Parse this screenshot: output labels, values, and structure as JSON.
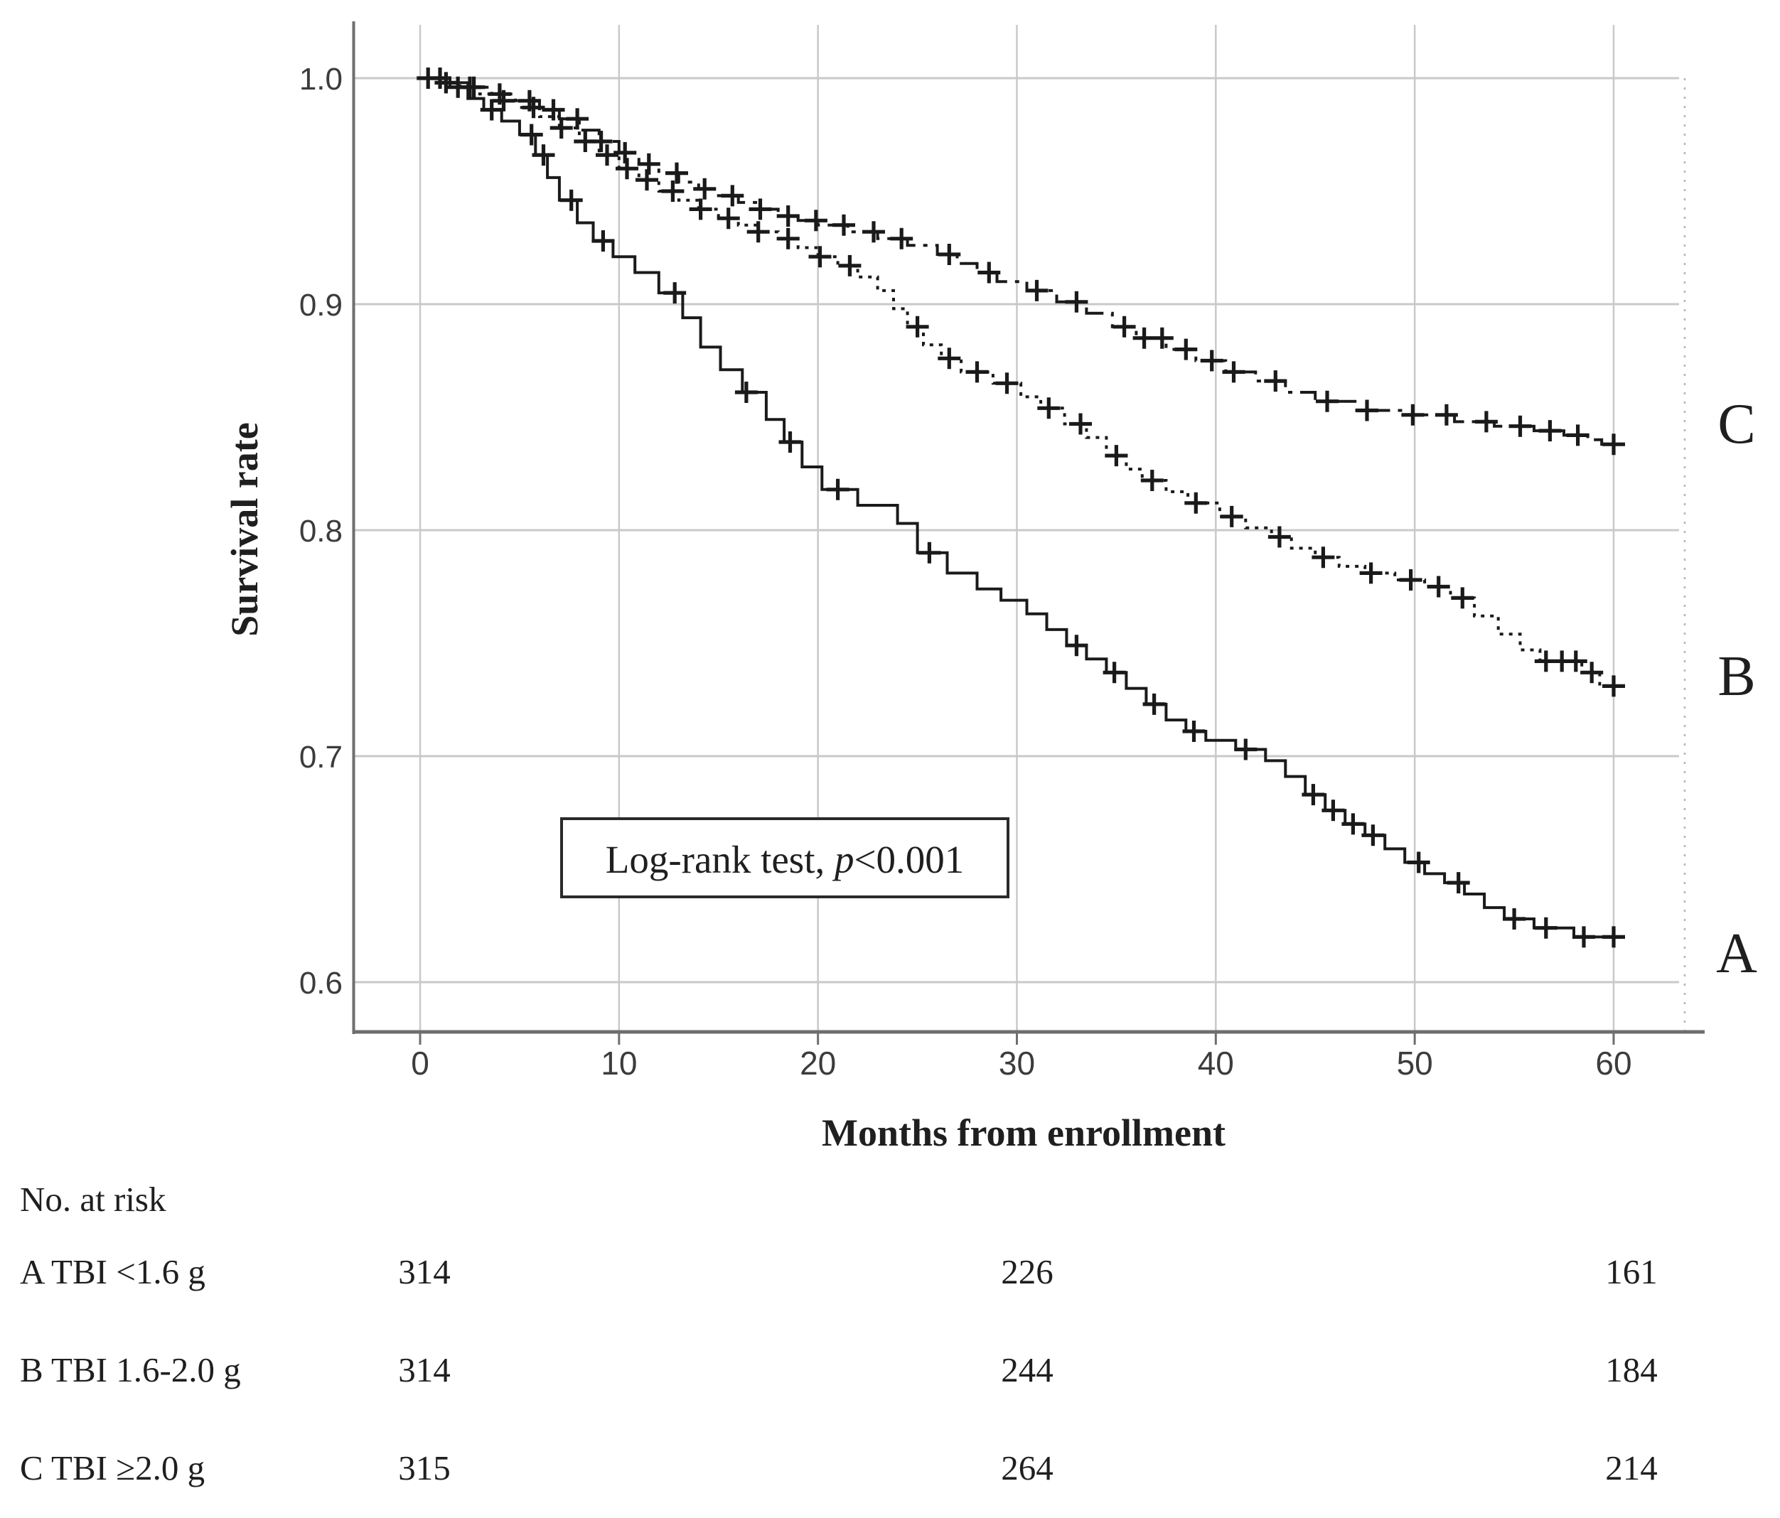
{
  "colors": {
    "background": "#ffffff",
    "curve": "#1a1a1a",
    "grid": "#c9c9c9",
    "axis": "#6e6e6e",
    "frame_dotted": "#b5b5b5",
    "text": "#1f1f1f"
  },
  "chart_data": {
    "type": "line",
    "subtype": "kaplan-meier-step",
    "title": "",
    "xlabel": "Months from enrollment",
    "ylabel": "Survival rate",
    "xlim": [
      0,
      60
    ],
    "ylim": [
      0.58,
      1.02
    ],
    "x_ticks": [
      0,
      10,
      20,
      30,
      40,
      50,
      60
    ],
    "x_tick_labels": [
      "0",
      "10",
      "20",
      "30",
      "40",
      "50",
      "60"
    ],
    "y_ticks": [
      1.0,
      0.9,
      0.8,
      0.7,
      0.6
    ],
    "y_tick_labels": [
      "1.0",
      "0.9",
      "0.8",
      "0.7",
      "0.6"
    ],
    "grid": true,
    "annotation": {
      "prefix": "Log-rank test, ",
      "p": "p",
      "suffix": "<0.001"
    },
    "series": [
      {
        "name": "A",
        "label": "A",
        "pattern": "solid",
        "steps": [
          [
            0,
            1.0
          ],
          [
            1.5,
            0.996
          ],
          [
            2.4,
            0.991
          ],
          [
            3.2,
            0.986
          ],
          [
            4.1,
            0.981
          ],
          [
            5.0,
            0.975
          ],
          [
            5.8,
            0.966
          ],
          [
            6.4,
            0.956
          ],
          [
            7.0,
            0.946
          ],
          [
            7.9,
            0.936
          ],
          [
            8.7,
            0.928
          ],
          [
            9.7,
            0.921
          ],
          [
            10.8,
            0.914
          ],
          [
            12.0,
            0.905
          ],
          [
            13.2,
            0.894
          ],
          [
            14.1,
            0.881
          ],
          [
            15.1,
            0.871
          ],
          [
            16.2,
            0.861
          ],
          [
            17.4,
            0.849
          ],
          [
            18.3,
            0.839
          ],
          [
            19.2,
            0.828
          ],
          [
            20.2,
            0.818
          ],
          [
            22.0,
            0.811
          ],
          [
            24.0,
            0.803
          ],
          [
            25.0,
            0.79
          ],
          [
            26.5,
            0.781
          ],
          [
            28.0,
            0.774
          ],
          [
            29.2,
            0.769
          ],
          [
            30.5,
            0.763
          ],
          [
            31.5,
            0.756
          ],
          [
            32.5,
            0.749
          ],
          [
            33.5,
            0.743
          ],
          [
            34.5,
            0.737
          ],
          [
            35.5,
            0.73
          ],
          [
            36.5,
            0.723
          ],
          [
            37.5,
            0.716
          ],
          [
            38.5,
            0.711
          ],
          [
            39.5,
            0.707
          ],
          [
            41.0,
            0.703
          ],
          [
            42.5,
            0.698
          ],
          [
            43.5,
            0.691
          ],
          [
            44.5,
            0.683
          ],
          [
            45.5,
            0.676
          ],
          [
            46.5,
            0.67
          ],
          [
            47.5,
            0.665
          ],
          [
            48.5,
            0.659
          ],
          [
            49.5,
            0.653
          ],
          [
            50.5,
            0.648
          ],
          [
            51.5,
            0.644
          ],
          [
            52.5,
            0.639
          ],
          [
            53.5,
            0.633
          ],
          [
            54.5,
            0.628
          ],
          [
            56.0,
            0.624
          ],
          [
            58.0,
            0.62
          ],
          [
            60,
            0.62
          ]
        ],
        "censor_times": [
          0.4,
          1.9,
          3.6,
          5.6,
          6.2,
          7.6,
          9.2,
          12.8,
          16.4,
          18.6,
          21.0,
          25.6,
          33.0,
          34.9,
          36.9,
          38.9,
          41.5,
          44.9,
          45.9,
          46.9,
          47.9,
          50.2,
          52.2,
          55.0,
          56.6,
          58.5,
          60
        ]
      },
      {
        "name": "B",
        "label": "B",
        "pattern": "dotted",
        "steps": [
          [
            0,
            1.0
          ],
          [
            1.0,
            0.998
          ],
          [
            2.0,
            0.996
          ],
          [
            3.0,
            0.993
          ],
          [
            4.0,
            0.99
          ],
          [
            5.0,
            0.987
          ],
          [
            6.0,
            0.983
          ],
          [
            7.0,
            0.978
          ],
          [
            8.0,
            0.972
          ],
          [
            9.0,
            0.966
          ],
          [
            10.0,
            0.96
          ],
          [
            11.0,
            0.955
          ],
          [
            12.0,
            0.95
          ],
          [
            13.0,
            0.946
          ],
          [
            14.0,
            0.942
          ],
          [
            15.0,
            0.938
          ],
          [
            16.0,
            0.935
          ],
          [
            17.0,
            0.932
          ],
          [
            18.0,
            0.929
          ],
          [
            19.0,
            0.925
          ],
          [
            20.0,
            0.921
          ],
          [
            21.0,
            0.917
          ],
          [
            22.0,
            0.912
          ],
          [
            23.0,
            0.906
          ],
          [
            23.8,
            0.898
          ],
          [
            24.5,
            0.89
          ],
          [
            25.3,
            0.882
          ],
          [
            26.2,
            0.876
          ],
          [
            27.2,
            0.87
          ],
          [
            28.8,
            0.865
          ],
          [
            30.2,
            0.859
          ],
          [
            31.2,
            0.854
          ],
          [
            32.4,
            0.847
          ],
          [
            33.5,
            0.841
          ],
          [
            34.5,
            0.833
          ],
          [
            35.5,
            0.827
          ],
          [
            36.3,
            0.822
          ],
          [
            37.5,
            0.817
          ],
          [
            38.6,
            0.812
          ],
          [
            40.2,
            0.806
          ],
          [
            41.5,
            0.801
          ],
          [
            42.8,
            0.797
          ],
          [
            43.8,
            0.792
          ],
          [
            45.0,
            0.788
          ],
          [
            46.2,
            0.784
          ],
          [
            47.5,
            0.781
          ],
          [
            49.0,
            0.778
          ],
          [
            50.5,
            0.775
          ],
          [
            51.8,
            0.77
          ],
          [
            53.0,
            0.762
          ],
          [
            54.2,
            0.754
          ],
          [
            55.3,
            0.747
          ],
          [
            56.3,
            0.742
          ],
          [
            58.4,
            0.737
          ],
          [
            59.3,
            0.731
          ],
          [
            60,
            0.731
          ]
        ],
        "censor_times": [
          1.3,
          2.7,
          4.2,
          5.7,
          7.1,
          8.3,
          9.4,
          10.4,
          11.4,
          12.7,
          14.1,
          15.5,
          17.0,
          18.5,
          20.1,
          21.6,
          25.0,
          26.6,
          28.0,
          29.5,
          31.6,
          33.2,
          35.0,
          36.8,
          39.0,
          40.8,
          43.2,
          45.4,
          47.8,
          49.8,
          51.2,
          52.4,
          56.6,
          57.4,
          58.1,
          58.9,
          60
        ]
      },
      {
        "name": "C",
        "label": "C",
        "pattern": "dashdot",
        "steps": [
          [
            0,
            1.0
          ],
          [
            1.2,
            0.998
          ],
          [
            2.4,
            0.996
          ],
          [
            3.6,
            0.993
          ],
          [
            4.8,
            0.99
          ],
          [
            6.0,
            0.986
          ],
          [
            7.0,
            0.982
          ],
          [
            8.0,
            0.977
          ],
          [
            9.0,
            0.972
          ],
          [
            10.0,
            0.967
          ],
          [
            11.0,
            0.962
          ],
          [
            12.0,
            0.958
          ],
          [
            13.0,
            0.954
          ],
          [
            14.0,
            0.951
          ],
          [
            15.0,
            0.948
          ],
          [
            16.0,
            0.945
          ],
          [
            17.0,
            0.942
          ],
          [
            18.0,
            0.939
          ],
          [
            19.0,
            0.937
          ],
          [
            20.0,
            0.935
          ],
          [
            21.5,
            0.932
          ],
          [
            23.0,
            0.929
          ],
          [
            24.5,
            0.926
          ],
          [
            26.0,
            0.922
          ],
          [
            27.0,
            0.918
          ],
          [
            28.0,
            0.914
          ],
          [
            29.0,
            0.91
          ],
          [
            30.5,
            0.906
          ],
          [
            32.0,
            0.901
          ],
          [
            33.5,
            0.896
          ],
          [
            34.8,
            0.89
          ],
          [
            36.0,
            0.885
          ],
          [
            37.5,
            0.88
          ],
          [
            39.0,
            0.875
          ],
          [
            40.5,
            0.87
          ],
          [
            42.0,
            0.866
          ],
          [
            43.5,
            0.861
          ],
          [
            45.0,
            0.857
          ],
          [
            47.0,
            0.853
          ],
          [
            49.5,
            0.851
          ],
          [
            52.0,
            0.848
          ],
          [
            54.0,
            0.846
          ],
          [
            56.0,
            0.844
          ],
          [
            57.5,
            0.842
          ],
          [
            58.7,
            0.84
          ],
          [
            59.4,
            0.838
          ],
          [
            60,
            0.838
          ]
        ],
        "censor_times": [
          1.0,
          2.5,
          4.0,
          5.5,
          6.7,
          7.9,
          9.1,
          10.3,
          11.5,
          12.9,
          14.3,
          15.7,
          17.1,
          18.5,
          19.9,
          21.3,
          22.8,
          24.2,
          26.6,
          28.6,
          31.0,
          33.0,
          35.4,
          36.4,
          37.3,
          38.5,
          39.8,
          40.9,
          43.0,
          45.6,
          47.6,
          49.9,
          51.6,
          53.6,
          55.3,
          56.8,
          58.2,
          60
        ]
      }
    ],
    "risk_table": {
      "title": "No. at risk",
      "time_points": [
        0,
        30,
        60
      ],
      "rows": [
        {
          "label": "A TBI <1.6 g",
          "values": [
            314,
            226,
            161
          ]
        },
        {
          "label": "B TBI 1.6-2.0 g",
          "values": [
            314,
            244,
            184
          ]
        },
        {
          "label": "C TBI ≥2.0 g",
          "values": [
            315,
            264,
            214
          ]
        }
      ]
    }
  }
}
